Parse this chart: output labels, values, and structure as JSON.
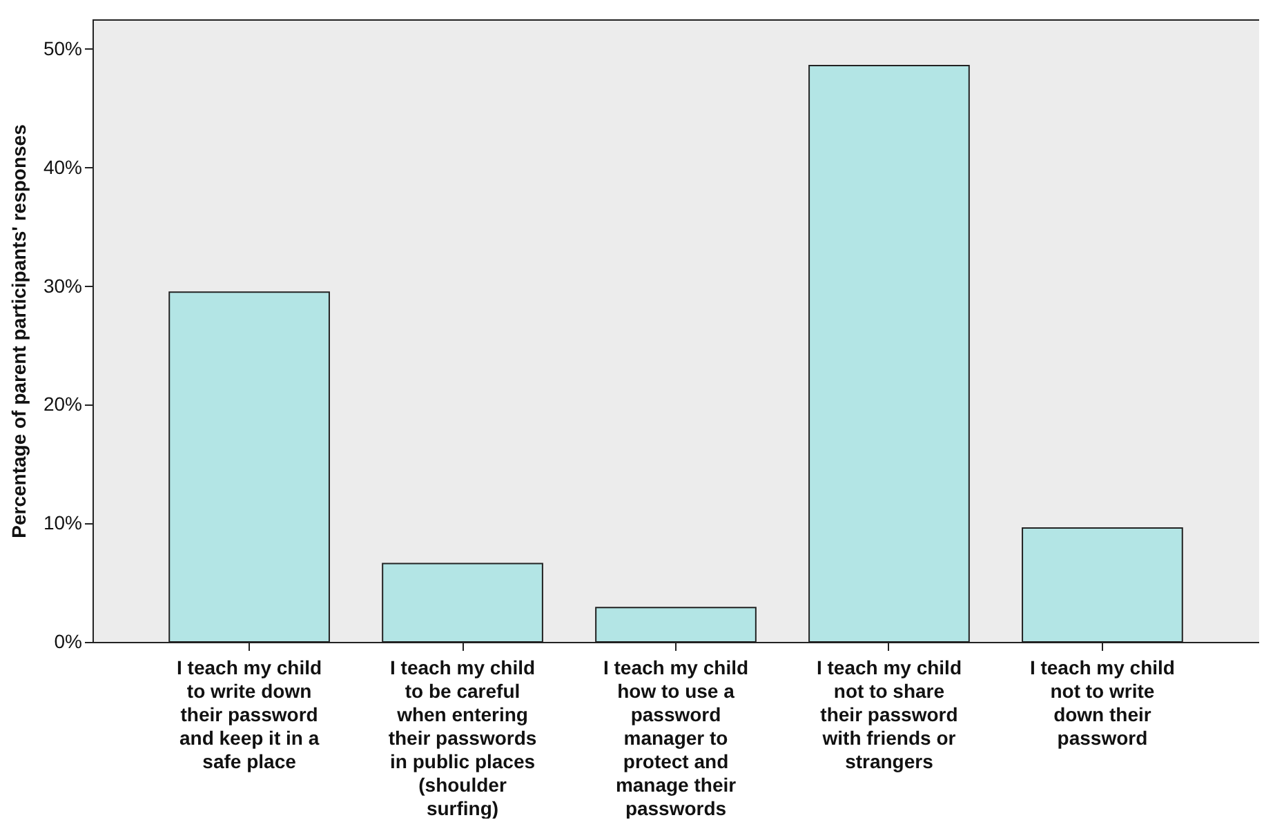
{
  "chart_data": {
    "type": "bar",
    "ylabel": "Percentage of parent participants' responses",
    "categories": [
      "I teach my child to write down their password and keep it in a safe place",
      "I teach my child to be careful when entering their passwords in public places (shoulder surfing)",
      "I teach my child how to use a password manager to protect and manage their passwords",
      "I teach my child not to share their password with friends or strangers",
      "I teach my child not to write down their password"
    ],
    "values": [
      29.5,
      6.6,
      2.9,
      48.6,
      9.6
    ],
    "color": "#b3e5e5",
    "ylim": [
      0,
      52.5
    ],
    "yticks": [
      {
        "value": 0,
        "label": "0%"
      },
      {
        "value": 10,
        "label": "10%"
      },
      {
        "value": 20,
        "label": "20%"
      },
      {
        "value": 30,
        "label": "30%"
      },
      {
        "value": 40,
        "label": "40%"
      },
      {
        "value": 50,
        "label": "50%"
      }
    ],
    "grid": false
  }
}
